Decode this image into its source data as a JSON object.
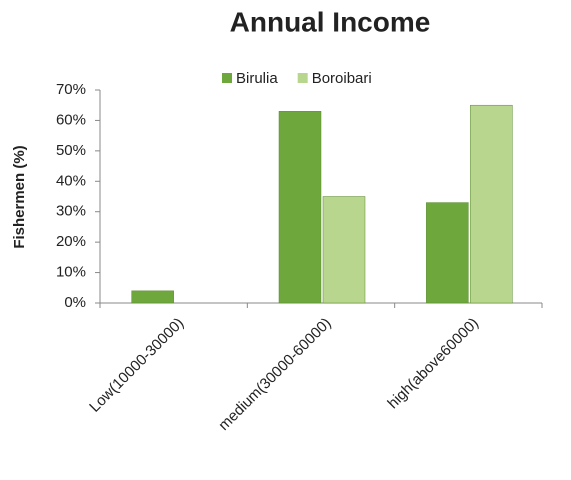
{
  "chart_data": {
    "type": "bar",
    "title": "Annual Income",
    "y_label": "Fishermen (%)",
    "categories": [
      "Low(10000-30000)",
      "medium(30000-60000)",
      "high(above60000)"
    ],
    "series": [
      {
        "name": "Birulia",
        "color": "#6ea83c",
        "values": [
          4,
          63,
          33
        ]
      },
      {
        "name": "Boroibari",
        "color": "#b8d68e",
        "values": [
          0,
          35,
          65
        ]
      }
    ],
    "ylim": [
      0,
      70
    ],
    "yticks": [
      {
        "value": 0,
        "label": "0%"
      },
      {
        "value": 10,
        "label": "10%"
      },
      {
        "value": 20,
        "label": "20%"
      },
      {
        "value": 30,
        "label": "30%"
      },
      {
        "value": 40,
        "label": "40%"
      },
      {
        "value": 50,
        "label": "50%"
      },
      {
        "value": 60,
        "label": "60%"
      },
      {
        "value": 70,
        "label": "70%"
      }
    ],
    "legend": "top",
    "grid": false
  }
}
